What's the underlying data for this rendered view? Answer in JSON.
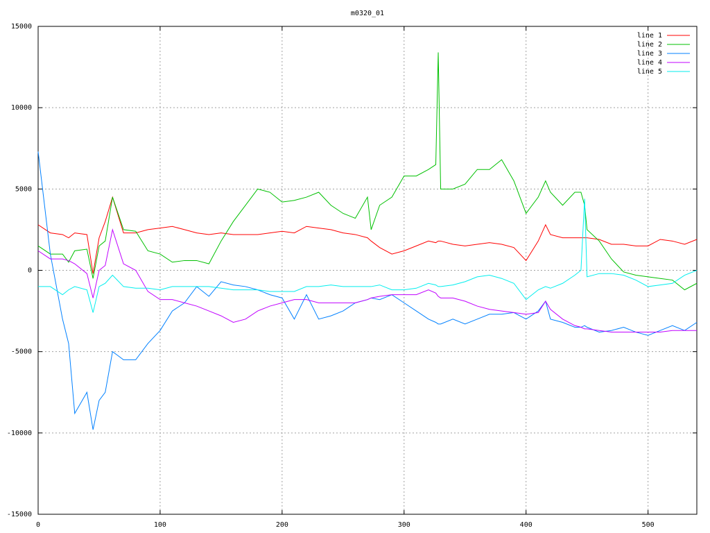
{
  "chart_data": {
    "type": "line",
    "title": "m0320_01",
    "x": [
      0,
      10,
      20,
      25,
      30,
      40,
      45,
      50,
      55,
      61,
      70,
      80,
      90,
      100,
      110,
      120,
      130,
      140,
      150,
      160,
      170,
      180,
      190,
      200,
      210,
      220,
      230,
      240,
      250,
      260,
      270,
      273,
      280,
      290,
      300,
      310,
      320,
      326,
      328,
      330,
      340,
      350,
      360,
      370,
      380,
      390,
      400,
      410,
      416,
      420,
      430,
      440,
      445,
      448,
      450,
      460,
      470,
      480,
      490,
      500,
      510,
      520,
      530,
      540
    ],
    "series": [
      {
        "name": "line 1",
        "color": "#ff0000",
        "values": [
          2800,
          2300,
          2200,
          2000,
          2300,
          2200,
          -200,
          2000,
          3000,
          4500,
          2300,
          2300,
          2500,
          2600,
          2700,
          2500,
          2300,
          2200,
          2300,
          2200,
          2200,
          2200,
          2300,
          2400,
          2300,
          2700,
          2600,
          2500,
          2300,
          2200,
          2000,
          1800,
          1400,
          1000,
          1200,
          1500,
          1800,
          1700,
          1800,
          1800,
          1600,
          1500,
          1600,
          1700,
          1600,
          1400,
          600,
          1800,
          2800,
          2200,
          2000,
          2000,
          2000,
          2000,
          2000,
          1900,
          1600,
          1600,
          1500,
          1500,
          1900,
          1800,
          1600,
          1900
        ]
      },
      {
        "name": "line 2",
        "color": "#00c000",
        "values": [
          1500,
          1000,
          1000,
          500,
          1200,
          1300,
          -500,
          1500,
          1800,
          4500,
          2500,
          2400,
          1200,
          1000,
          500,
          600,
          600,
          400,
          1800,
          3000,
          4000,
          5000,
          4800,
          4200,
          4300,
          4500,
          4800,
          4000,
          3500,
          3200,
          4500,
          2500,
          4000,
          4500,
          5800,
          5800,
          6200,
          6500,
          13400,
          5000,
          5000,
          5300,
          6200,
          6200,
          6800,
          5500,
          3500,
          4500,
          5500,
          4800,
          4000,
          4800,
          4800,
          4000,
          2500,
          1800,
          700,
          -100,
          -300,
          -400,
          -500,
          -600,
          -1200,
          -800
        ]
      },
      {
        "name": "line 3",
        "color": "#0080ff",
        "values": [
          7300,
          1000,
          -3000,
          -4500,
          -8800,
          -7500,
          -9800,
          -8000,
          -7500,
          -5000,
          -5500,
          -5500,
          -4500,
          -3700,
          -2500,
          -2000,
          -1000,
          -1600,
          -700,
          -900,
          -1000,
          -1200,
          -1500,
          -1700,
          -3000,
          -1500,
          -3000,
          -2800,
          -2500,
          -2000,
          -1800,
          -1700,
          -1800,
          -1500,
          -2000,
          -2500,
          -3000,
          -3200,
          -3300,
          -3300,
          -3000,
          -3300,
          -3000,
          -2700,
          -2700,
          -2600,
          -3000,
          -2500,
          -1900,
          -3000,
          -3200,
          -3500,
          -3500,
          -3400,
          -3500,
          -3800,
          -3700,
          -3500,
          -3800,
          -4000,
          -3700,
          -3400,
          -3700,
          -3200
        ]
      },
      {
        "name": "line 4",
        "color": "#c000ff",
        "values": [
          1200,
          700,
          700,
          600,
          400,
          -200,
          -1700,
          0,
          300,
          2500,
          400,
          0,
          -1300,
          -1800,
          -1800,
          -2000,
          -2200,
          -2500,
          -2800,
          -3200,
          -3000,
          -2500,
          -2200,
          -2000,
          -1800,
          -1800,
          -2000,
          -2000,
          -2000,
          -2000,
          -1800,
          -1700,
          -1600,
          -1500,
          -1500,
          -1500,
          -1200,
          -1400,
          -1600,
          -1700,
          -1700,
          -1900,
          -2200,
          -2400,
          -2500,
          -2600,
          -2700,
          -2600,
          -1900,
          -2400,
          -3000,
          -3400,
          -3500,
          -3600,
          -3600,
          -3700,
          -3800,
          -3800,
          -3800,
          -3800,
          -3800,
          -3700,
          -3700,
          -3700
        ]
      },
      {
        "name": "line 5",
        "color": "#00eeee",
        "values": [
          -1000,
          -1000,
          -1500,
          -1200,
          -1000,
          -1200,
          -2600,
          -1000,
          -800,
          -300,
          -1000,
          -1100,
          -1100,
          -1200,
          -1000,
          -1000,
          -1000,
          -1000,
          -1100,
          -1200,
          -1200,
          -1200,
          -1300,
          -1300,
          -1300,
          -1000,
          -1000,
          -900,
          -1000,
          -1000,
          -1000,
          -1000,
          -900,
          -1200,
          -1200,
          -1100,
          -800,
          -900,
          -1000,
          -1000,
          -900,
          -700,
          -400,
          -300,
          -500,
          -800,
          -1800,
          -1200,
          -1000,
          -1100,
          -800,
          -300,
          0,
          4400,
          -400,
          -200,
          -200,
          -300,
          -600,
          -1000,
          -900,
          -800,
          -300,
          0
        ]
      }
    ],
    "xlim": [
      0,
      540
    ],
    "xticks": [
      0,
      100,
      200,
      300,
      400,
      500
    ],
    "ylim": [
      -15000,
      15000
    ],
    "yticks": [
      -15000,
      -10000,
      -5000,
      0,
      5000,
      10000,
      15000
    ],
    "grid": true,
    "legend": "top-right"
  }
}
